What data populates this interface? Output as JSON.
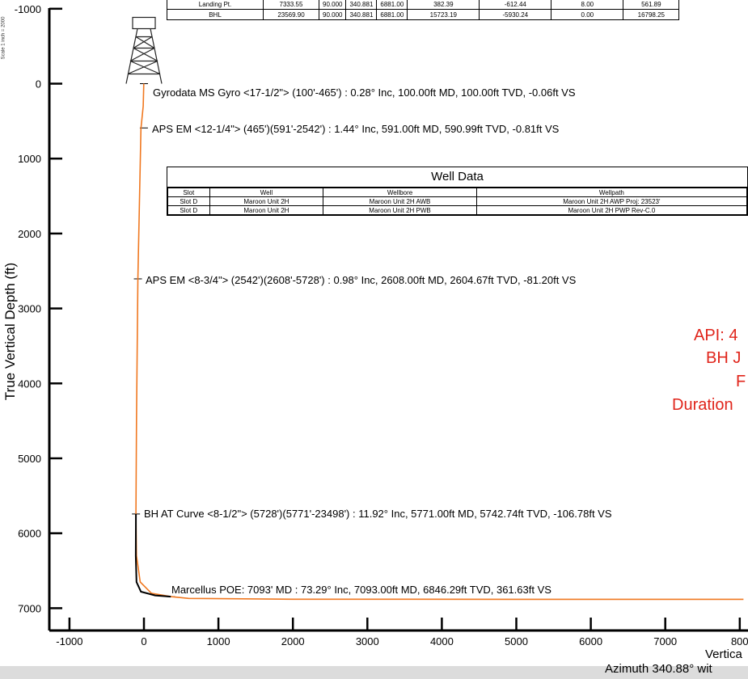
{
  "scale_note": "Scale 1 inch = 2000",
  "top_table": {
    "rows": [
      [
        "Landing Pt.",
        "7333.55",
        "90.000",
        "340.881",
        "6881.00",
        "382.39",
        "-612.44",
        "8.00",
        "561.89"
      ],
      [
        "BHL",
        "23569.90",
        "90.000",
        "340.881",
        "6881.00",
        "15723.19",
        "-5930.24",
        "0.00",
        "16798.25"
      ]
    ]
  },
  "well_data": {
    "title": "Well Data",
    "headers": [
      "Slot",
      "Well",
      "Wellbore",
      "Wellpath"
    ],
    "rows": [
      [
        "Slot D",
        "Maroon Unit 2H",
        "Maroon Unit 2H AWB",
        "Maroon Unit 2H AWP Proj: 23523'"
      ],
      [
        "Slot D",
        "Maroon Unit 2H",
        "Maroon Unit 2H PWB",
        "Maroon Unit 2H PWP Rev-C.0"
      ]
    ]
  },
  "annotations": [
    {
      "text": "Gyrodata MS Gyro <17-1/2\"> (100'-465') : 0.28° Inc, 100.00ft MD, 100.00ft TVD, -0.06ft VS"
    },
    {
      "text": "APS EM <12-1/4\"> (465')(591'-2542') : 1.44° Inc, 591.00ft MD, 590.99ft TVD, -0.81ft VS"
    },
    {
      "text": "APS EM <8-3/4\"> (2542')(2608'-5728') : 0.98° Inc, 2608.00ft MD, 2604.67ft TVD, -81.20ft VS"
    },
    {
      "text": "BH AT Curve <8-1/2\"> (5728')(5771'-23498') : 11.92° Inc, 5771.00ft MD, 5742.74ft TVD, -106.78ft VS"
    },
    {
      "text": "Marcellus POE: 7093' MD : 73.29° Inc, 7093.00ft MD, 6846.29ft TVD, 361.63ft VS"
    }
  ],
  "red_notes": [
    "API: 4",
    "BH J",
    "F",
    "Duration"
  ],
  "chart_data": {
    "type": "line",
    "ylabel": "True Vertical Depth (ft)",
    "xlabel": "Vertica",
    "xlabel_sub": "Azimuth 340.88° wit",
    "x_ticks": [
      "-1000",
      "0",
      "1000",
      "2000",
      "3000",
      "4000",
      "5000",
      "6000",
      "7000",
      "800"
    ],
    "y_ticks": [
      "-1000",
      "0",
      "1000",
      "2000",
      "3000",
      "4000",
      "5000",
      "6000",
      "7000"
    ],
    "x_tick_values": [
      -1000,
      0,
      1000,
      2000,
      3000,
      4000,
      5000,
      6000,
      7000,
      8000
    ],
    "y_tick_values": [
      -1000,
      0,
      1000,
      2000,
      3000,
      4000,
      5000,
      6000,
      7000
    ],
    "xlim": [
      -1300,
      8050
    ],
    "ylim": [
      -1000,
      7350
    ],
    "y_inverted": true,
    "series": [
      {
        "color": "#f07820",
        "x": [
          -2,
          -10,
          -40,
          -81,
          -100,
          -107,
          -100,
          -50,
          100,
          361,
          600,
          2000,
          5000,
          8050
        ],
        "y": [
          0,
          300,
          600,
          2604,
          4500,
          5742,
          6300,
          6650,
          6800,
          6846,
          6870,
          6880,
          6881,
          6881
        ]
      },
      {
        "color": "#000000",
        "x": [
          -107,
          -110,
          -100,
          -40,
          150,
          361
        ],
        "y": [
          5742,
          6300,
          6650,
          6780,
          6830,
          6846
        ]
      }
    ]
  }
}
